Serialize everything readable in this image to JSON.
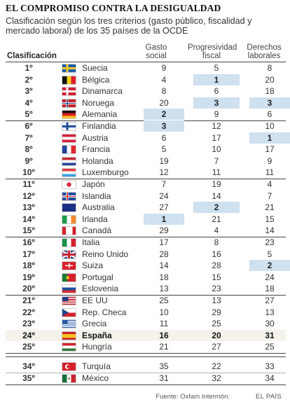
{
  "title": "EL COMPROMISO CONTRA LA DESIGUALDAD",
  "subtitle": "Clasificación según los tres criterios (gasto público, fiscalidad y mercado laboral) de los 35 países de la OCDE",
  "footer": {
    "source": "Fuente: Oxfam Intermón.",
    "brand": "EL PAÍS"
  },
  "chart_data": {
    "type": "table",
    "columns": [
      "Clasificación",
      "Gasto social",
      "Progresividad fiscal",
      "Derechos laborales"
    ],
    "highlight_color": "#cfe0ef",
    "rows": [
      {
        "rank": "1º",
        "country": "Suecia",
        "flag": "sweden",
        "gasto": 9,
        "fiscal": 5,
        "laborales": 8
      },
      {
        "rank": "2º",
        "country": "Bélgica",
        "flag": "belgium",
        "gasto": 4,
        "fiscal": 1,
        "laborales": 20
      },
      {
        "rank": "3º",
        "country": "Dinamarca",
        "flag": "denmark",
        "gasto": 8,
        "fiscal": 6,
        "laborales": 18
      },
      {
        "rank": "4º",
        "country": "Noruega",
        "flag": "norway",
        "gasto": 20,
        "fiscal": 3,
        "laborales": 3
      },
      {
        "rank": "5º",
        "country": "Alemania",
        "flag": "germany",
        "gasto": 2,
        "fiscal": 9,
        "laborales": 6
      },
      {
        "rank": "6º",
        "country": "Finlandia",
        "flag": "finland",
        "gasto": 3,
        "fiscal": 12,
        "laborales": 10
      },
      {
        "rank": "7º",
        "country": "Austria",
        "flag": "austria",
        "gasto": 6,
        "fiscal": 17,
        "laborales": 1
      },
      {
        "rank": "8º",
        "country": "Francia",
        "flag": "france",
        "gasto": 5,
        "fiscal": 10,
        "laborales": 17
      },
      {
        "rank": "9º",
        "country": "Holanda",
        "flag": "netherlands",
        "gasto": 19,
        "fiscal": 7,
        "laborales": 9
      },
      {
        "rank": "10º",
        "country": "Luxemburgo",
        "flag": "luxembourg",
        "gasto": 12,
        "fiscal": 11,
        "laborales": 11
      },
      {
        "rank": "11º",
        "country": "Japón",
        "flag": "japan",
        "gasto": 7,
        "fiscal": 19,
        "laborales": 4
      },
      {
        "rank": "12º",
        "country": "Islandia",
        "flag": "iceland",
        "gasto": 24,
        "fiscal": 14,
        "laborales": 7
      },
      {
        "rank": "13º",
        "country": "Australia",
        "flag": "australia",
        "gasto": 27,
        "fiscal": 2,
        "laborales": 21
      },
      {
        "rank": "14º",
        "country": "Irlanda",
        "flag": "ireland",
        "gasto": 1,
        "fiscal": 21,
        "laborales": 15
      },
      {
        "rank": "15º",
        "country": "Canadá",
        "flag": "canada",
        "gasto": 29,
        "fiscal": 4,
        "laborales": 14
      },
      {
        "rank": "16º",
        "country": "Italia",
        "flag": "italy",
        "gasto": 17,
        "fiscal": 8,
        "laborales": 23
      },
      {
        "rank": "17º",
        "country": "Reino Unido",
        "flag": "uk",
        "gasto": 28,
        "fiscal": 16,
        "laborales": 5
      },
      {
        "rank": "18º",
        "country": "Suiza",
        "flag": "switzerland",
        "gasto": 14,
        "fiscal": 28,
        "laborales": 2
      },
      {
        "rank": "19º",
        "country": "Portugal",
        "flag": "portugal",
        "gasto": 18,
        "fiscal": 15,
        "laborales": 24
      },
      {
        "rank": "20º",
        "country": "Eslovenia",
        "flag": "slovenia",
        "gasto": 13,
        "fiscal": 23,
        "laborales": 18
      },
      {
        "rank": "21º",
        "country": "EE UU",
        "flag": "usa",
        "gasto": 25,
        "fiscal": 13,
        "laborales": 27
      },
      {
        "rank": "22º",
        "country": "Rep. Checa",
        "flag": "czech",
        "gasto": 10,
        "fiscal": 29,
        "laborales": 13
      },
      {
        "rank": "23º",
        "country": "Grecia",
        "flag": "greece",
        "gasto": 11,
        "fiscal": 25,
        "laborales": 30
      },
      {
        "rank": "24º",
        "country": "España",
        "flag": "spain",
        "gasto": 16,
        "fiscal": 20,
        "laborales": 31
      },
      {
        "rank": "25º",
        "country": "Hungría",
        "flag": "hungary",
        "gasto": 21,
        "fiscal": 27,
        "laborales": 25
      },
      {
        "rank": "34º",
        "country": "Turquía",
        "flag": "turkey",
        "gasto": 35,
        "fiscal": 22,
        "laborales": 33
      },
      {
        "rank": "35º",
        "country": "México",
        "flag": "mexico",
        "gasto": 31,
        "fiscal": 32,
        "laborales": 34
      }
    ],
    "highlighted": [
      {
        "country": "Bélgica",
        "column": "fiscal"
      },
      {
        "country": "Noruega",
        "column": "fiscal"
      },
      {
        "country": "Noruega",
        "column": "laborales"
      },
      {
        "country": "Alemania",
        "column": "gasto"
      },
      {
        "country": "Finlandia",
        "column": "gasto"
      },
      {
        "country": "Austria",
        "column": "laborales"
      },
      {
        "country": "Australia",
        "column": "fiscal"
      },
      {
        "country": "Irlanda",
        "column": "gasto"
      },
      {
        "country": "Suiza",
        "column": "laborales"
      }
    ],
    "emphasized_row": "España"
  }
}
